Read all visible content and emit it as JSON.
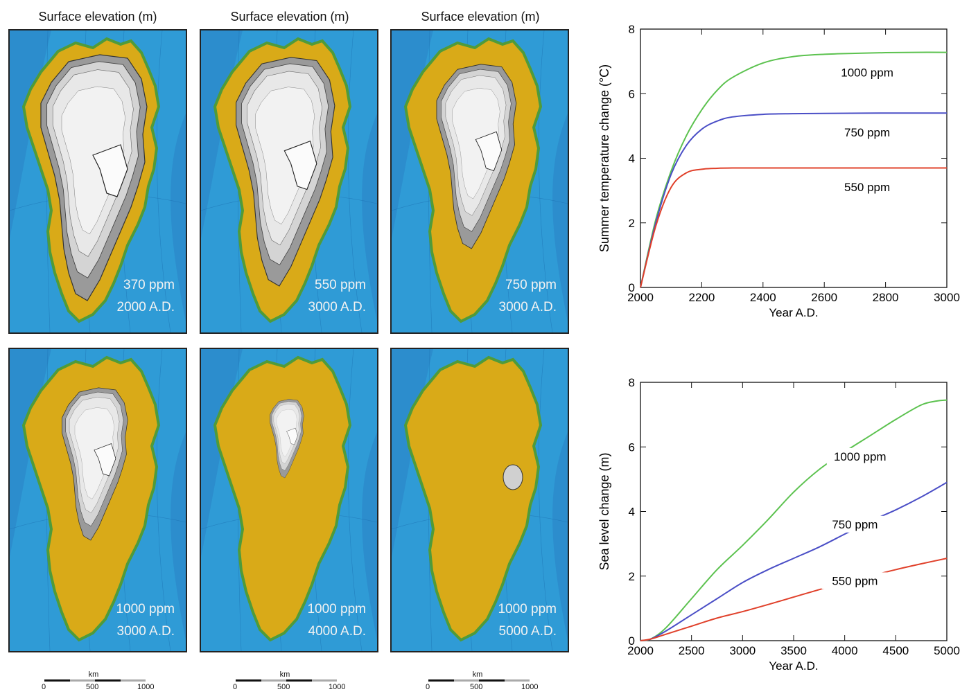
{
  "maps": [
    {
      "header": "Surface elevation (m)",
      "line1": "370 ppm",
      "line2": "2000 A.D.",
      "ice_fraction": 1.0
    },
    {
      "header": "Surface elevation (m)",
      "line1": "550 ppm",
      "line2": "3000 A.D.",
      "ice_fraction": 0.93
    },
    {
      "header": "Surface elevation (m)",
      "line1": "750 ppm",
      "line2": "3000 A.D.",
      "ice_fraction": 0.75
    },
    {
      "header": "",
      "line1": "1000 ppm",
      "line2": "3000 A.D.",
      "ice_fraction": 0.62
    },
    {
      "header": "",
      "line1": "1000 ppm",
      "line2": "4000 A.D.",
      "ice_fraction": 0.32
    },
    {
      "header": "",
      "line1": "1000 ppm",
      "line2": "5000 A.D.",
      "ice_fraction": 0.03
    }
  ],
  "scalebar": {
    "unit": "km",
    "ticks": [
      "0",
      "500",
      "1000"
    ]
  },
  "colors": {
    "ocean": "#2f9bd6",
    "ocean_deep": "#2a7fc4",
    "land": "#d9aa18",
    "land_low": "#4f9b3a",
    "ice": "#f2f2f2",
    "contour": "#555555",
    "series_1000": "#5cc24f",
    "series_750": "#4a4ec6",
    "series_550": "#e0402a"
  },
  "chart_data": [
    {
      "type": "line",
      "xlabel": "Year A.D.",
      "ylabel": "Summer temperature change (°C)",
      "xlim": [
        2000,
        3000
      ],
      "ylim": [
        0,
        8
      ],
      "xticks": [
        2000,
        2200,
        2400,
        2600,
        2800,
        3000
      ],
      "yticks": [
        0,
        2,
        4,
        6,
        8
      ],
      "series": [
        {
          "name": "1000 ppm",
          "color": "#5cc24f",
          "label_at": [
            2740,
            6.55
          ],
          "x": [
            2000,
            2050,
            2100,
            2150,
            2200,
            2250,
            2300,
            2400,
            2500,
            2600,
            2700,
            2800,
            2900,
            3000
          ],
          "y": [
            0,
            2.1,
            3.6,
            4.7,
            5.5,
            6.1,
            6.5,
            6.95,
            7.15,
            7.22,
            7.25,
            7.27,
            7.28,
            7.28
          ]
        },
        {
          "name": "750 ppm",
          "color": "#4a4ec6",
          "label_at": [
            2740,
            4.7
          ],
          "x": [
            2000,
            2050,
            2100,
            2150,
            2200,
            2250,
            2300,
            2400,
            2500,
            2600,
            2800,
            3000
          ],
          "y": [
            0,
            2.0,
            3.5,
            4.4,
            4.9,
            5.15,
            5.28,
            5.36,
            5.38,
            5.39,
            5.4,
            5.4
          ]
        },
        {
          "name": "550 ppm",
          "color": "#e0402a",
          "label_at": [
            2740,
            3.0
          ],
          "x": [
            2000,
            2050,
            2100,
            2150,
            2200,
            2250,
            2300,
            2400,
            2600,
            2800,
            3000
          ],
          "y": [
            0,
            1.9,
            3.1,
            3.55,
            3.66,
            3.69,
            3.7,
            3.7,
            3.7,
            3.7,
            3.7
          ]
        }
      ]
    },
    {
      "type": "line",
      "xlabel": "Year A.D.",
      "ylabel": "Sea level change (m)",
      "xlim": [
        2000,
        5000
      ],
      "ylim": [
        0,
        8
      ],
      "xticks": [
        2000,
        2500,
        3000,
        3500,
        4000,
        4500,
        5000
      ],
      "yticks": [
        0,
        2,
        4,
        6,
        8
      ],
      "series": [
        {
          "name": "1000 ppm",
          "color": "#5cc24f",
          "label_at": [
            4150,
            5.6
          ],
          "x": [
            2000,
            2100,
            2250,
            2500,
            2750,
            3000,
            3250,
            3500,
            3750,
            4000,
            4250,
            4500,
            4750,
            4900,
            5000
          ],
          "y": [
            0,
            0.05,
            0.4,
            1.3,
            2.2,
            2.95,
            3.75,
            4.6,
            5.3,
            5.85,
            6.35,
            6.85,
            7.3,
            7.42,
            7.45
          ]
        },
        {
          "name": "750 ppm",
          "color": "#4a4ec6",
          "label_at": [
            4100,
            3.5
          ],
          "x": [
            2000,
            2100,
            2250,
            2500,
            2750,
            3000,
            3250,
            3500,
            3750,
            4000,
            4250,
            4500,
            4750,
            5000
          ],
          "y": [
            0,
            0.05,
            0.3,
            0.8,
            1.3,
            1.8,
            2.2,
            2.55,
            2.9,
            3.3,
            3.7,
            4.05,
            4.45,
            4.9
          ]
        },
        {
          "name": "550 ppm",
          "color": "#e0402a",
          "label_at": [
            4100,
            1.75
          ],
          "x": [
            2000,
            2100,
            2250,
            2500,
            2750,
            3000,
            3250,
            3500,
            3750,
            4000,
            4250,
            4500,
            4750,
            5000
          ],
          "y": [
            0,
            0.05,
            0.2,
            0.45,
            0.7,
            0.9,
            1.12,
            1.35,
            1.58,
            1.8,
            2.0,
            2.2,
            2.38,
            2.55
          ]
        }
      ]
    }
  ]
}
